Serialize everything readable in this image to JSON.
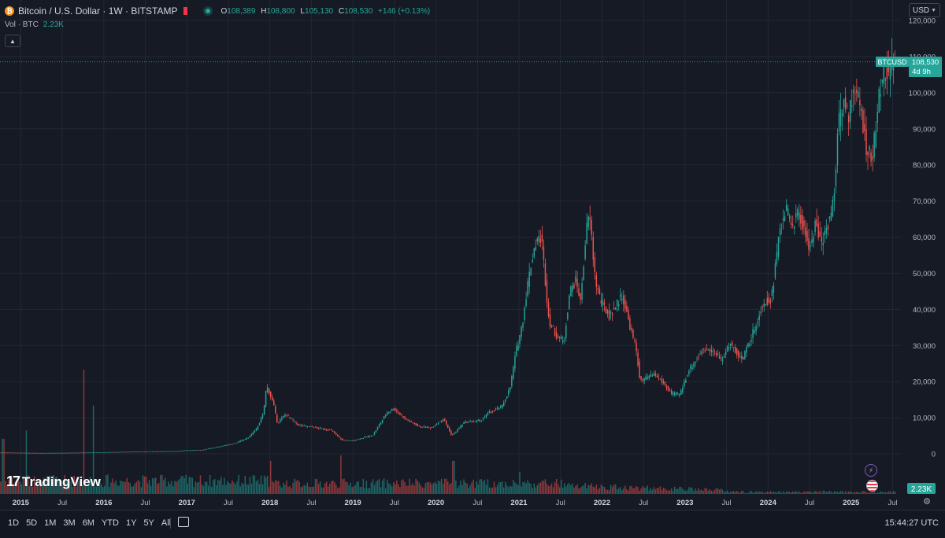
{
  "header": {
    "symbol": "Bitcoin / U.S. Dollar · 1W · BITSTAMP",
    "ohlc": [
      {
        "k": "O",
        "v": "108,389"
      },
      {
        "k": "H",
        "v": "108,800"
      },
      {
        "k": "L",
        "v": "105,130"
      },
      {
        "k": "C",
        "v": "108,530"
      }
    ],
    "change": "+146 (+0.13%)",
    "volume_label": "Vol · BTC",
    "volume_value": "2.23K",
    "currency": "USD",
    "coin_glyph": "₿"
  },
  "price_tag": {
    "symbol": "BTCUSD",
    "price": "108,530",
    "countdown": "4d 9h"
  },
  "volume_tag": "2.23K",
  "logo": "TradingView",
  "bottom_bar": {
    "ranges": [
      "1D",
      "5D",
      "1M",
      "3M",
      "6M",
      "YTD",
      "1Y",
      "5Y",
      "All"
    ],
    "time": "15:44:27 UTC"
  },
  "colors": {
    "up": "#26a69a",
    "down": "#ef5350",
    "bg": "#161a25",
    "grid": "#232735",
    "text": "#d1d4dc"
  },
  "chart_data": {
    "type": "candlestick",
    "y_ticks": [
      "120,000",
      "110,000",
      "100,000",
      "90,000",
      "80,000",
      "70,000",
      "60,000",
      "50,000",
      "40,000",
      "30,000",
      "20,000",
      "10,000",
      "0"
    ],
    "y_tick_values": [
      120000,
      110000,
      100000,
      90000,
      80000,
      70000,
      60000,
      50000,
      40000,
      30000,
      20000,
      10000,
      0
    ],
    "ylim": [
      0,
      120000
    ],
    "x_ticks": [
      "2015",
      "Jul",
      "2016",
      "Jul",
      "2017",
      "Jul",
      "2018",
      "Jul",
      "2019",
      "Jul",
      "2020",
      "Jul",
      "2021",
      "Jul",
      "2022",
      "Jul",
      "2023",
      "Jul",
      "2024",
      "Jul",
      "2025",
      "Jul"
    ],
    "x_tick_values": [
      2015.0,
      2015.5,
      2016.0,
      2016.5,
      2017.0,
      2017.5,
      2018.0,
      2018.5,
      2019.0,
      2019.5,
      2020.0,
      2020.5,
      2021.0,
      2021.5,
      2022.0,
      2022.5,
      2023.0,
      2023.5,
      2024.0,
      2024.5,
      2025.0,
      2025.5
    ],
    "xlim": [
      2014.75,
      2025.6
    ],
    "last_price": 108530,
    "price_path": [
      [
        2014.75,
        380
      ],
      [
        2015.0,
        300
      ],
      [
        2015.25,
        240
      ],
      [
        2015.5,
        280
      ],
      [
        2015.85,
        380
      ],
      [
        2016.0,
        430
      ],
      [
        2016.45,
        650
      ],
      [
        2016.6,
        670
      ],
      [
        2016.9,
        760
      ],
      [
        2017.0,
        970
      ],
      [
        2017.2,
        1100
      ],
      [
        2017.4,
        2000
      ],
      [
        2017.6,
        3000
      ],
      [
        2017.75,
        4500
      ],
      [
        2017.85,
        7000
      ],
      [
        2017.93,
        11000
      ],
      [
        2017.97,
        19000
      ],
      [
        2018.05,
        14000
      ],
      [
        2018.1,
        8500
      ],
      [
        2018.2,
        11000
      ],
      [
        2018.35,
        8000
      ],
      [
        2018.5,
        7500
      ],
      [
        2018.75,
        6500
      ],
      [
        2018.88,
        3800
      ],
      [
        2019.0,
        3600
      ],
      [
        2019.25,
        5200
      ],
      [
        2019.42,
        11500
      ],
      [
        2019.5,
        12500
      ],
      [
        2019.65,
        9500
      ],
      [
        2019.82,
        7500
      ],
      [
        2019.95,
        7200
      ],
      [
        2020.1,
        9800
      ],
      [
        2020.2,
        5000
      ],
      [
        2020.35,
        8700
      ],
      [
        2020.55,
        9200
      ],
      [
        2020.65,
        11500
      ],
      [
        2020.8,
        13000
      ],
      [
        2020.9,
        18000
      ],
      [
        2020.98,
        29000
      ],
      [
        2021.05,
        36000
      ],
      [
        2021.12,
        48000
      ],
      [
        2021.2,
        58000
      ],
      [
        2021.28,
        60000
      ],
      [
        2021.37,
        37000
      ],
      [
        2021.45,
        33000
      ],
      [
        2021.55,
        31000
      ],
      [
        2021.62,
        45000
      ],
      [
        2021.7,
        48000
      ],
      [
        2021.75,
        42000
      ],
      [
        2021.82,
        62000
      ],
      [
        2021.86,
        66000
      ],
      [
        2021.93,
        48000
      ],
      [
        2022.0,
        42000
      ],
      [
        2022.1,
        38000
      ],
      [
        2022.25,
        44000
      ],
      [
        2022.35,
        35000
      ],
      [
        2022.42,
        29000
      ],
      [
        2022.47,
        20000
      ],
      [
        2022.55,
        21000
      ],
      [
        2022.65,
        22000
      ],
      [
        2022.75,
        19500
      ],
      [
        2022.85,
        16500
      ],
      [
        2022.95,
        16500
      ],
      [
        2023.05,
        23000
      ],
      [
        2023.2,
        28000
      ],
      [
        2023.3,
        29500
      ],
      [
        2023.45,
        26000
      ],
      [
        2023.55,
        30500
      ],
      [
        2023.7,
        26000
      ],
      [
        2023.85,
        35000
      ],
      [
        2023.95,
        42000
      ],
      [
        2024.05,
        43000
      ],
      [
        2024.15,
        62000
      ],
      [
        2024.22,
        68000
      ],
      [
        2024.3,
        63000
      ],
      [
        2024.38,
        67000
      ],
      [
        2024.45,
        61000
      ],
      [
        2024.52,
        57000
      ],
      [
        2024.58,
        64000
      ],
      [
        2024.65,
        58000
      ],
      [
        2024.72,
        63000
      ],
      [
        2024.8,
        70000
      ],
      [
        2024.85,
        90000
      ],
      [
        2024.92,
        98000
      ],
      [
        2024.98,
        94000
      ],
      [
        2025.05,
        102000
      ],
      [
        2025.12,
        96000
      ],
      [
        2025.2,
        84000
      ],
      [
        2025.27,
        82000
      ],
      [
        2025.32,
        94000
      ],
      [
        2025.38,
        104000
      ],
      [
        2025.42,
        107000
      ],
      [
        2025.47,
        104000
      ],
      [
        2025.52,
        108530
      ]
    ],
    "volume_spikes": [
      [
        2014.78,
        20000
      ],
      [
        2015.05,
        23000
      ],
      [
        2015.75,
        45000
      ],
      [
        2015.87,
        32000
      ],
      [
        2018.0,
        12000
      ],
      [
        2018.85,
        14000
      ],
      [
        2020.2,
        12000
      ],
      [
        2021.0,
        8000
      ]
    ],
    "volume_axis_max": 45000
  }
}
